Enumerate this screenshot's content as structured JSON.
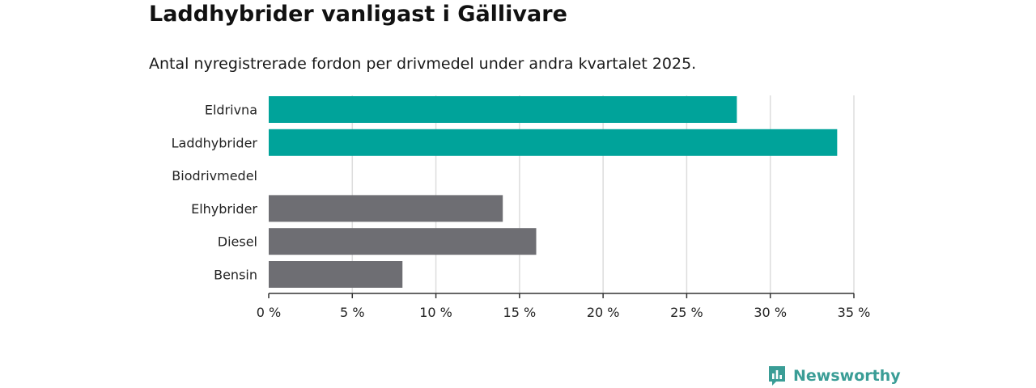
{
  "title": "Laddhybrider vanligast i Gällivare",
  "subtitle": "Antal nyregistrerade fordon per drivmedel under andra kvartalet 2025.",
  "brand": {
    "name": "Newsworthy",
    "icon": "newsworthy-logo-icon",
    "color": "#3a9d96"
  },
  "chart_data": {
    "type": "bar",
    "orientation": "horizontal",
    "title": "Laddhybrider vanligast i Gällivare",
    "subtitle": "Antal nyregistrerade fordon per drivmedel under andra kvartalet 2025.",
    "categories": [
      "Eldrivna",
      "Laddhybrider",
      "Biodrivmedel",
      "Elhybrider",
      "Diesel",
      "Bensin"
    ],
    "values": [
      28,
      34,
      0,
      14,
      16,
      8
    ],
    "colors": [
      "#00a39a",
      "#00a39a",
      "#00a39a",
      "#6e6e73",
      "#6e6e73",
      "#6e6e73"
    ],
    "xlim": [
      0,
      35
    ],
    "xticks": [
      0,
      5,
      10,
      15,
      20,
      25,
      30,
      35
    ],
    "xtick_labels": [
      "0 %",
      "5 %",
      "10 %",
      "15 %",
      "20 %",
      "25 %",
      "30 %",
      "35 %"
    ],
    "xlabel": "",
    "ylabel": "",
    "grid": "vertical",
    "legend": "none"
  }
}
